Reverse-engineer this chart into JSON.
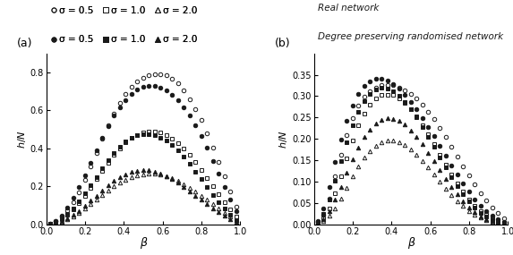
{
  "beta": [
    0.02,
    0.05,
    0.08,
    0.11,
    0.14,
    0.17,
    0.2,
    0.23,
    0.26,
    0.29,
    0.32,
    0.35,
    0.38,
    0.41,
    0.44,
    0.47,
    0.5,
    0.53,
    0.56,
    0.59,
    0.62,
    0.65,
    0.68,
    0.71,
    0.74,
    0.77,
    0.8,
    0.83,
    0.86,
    0.89,
    0.92,
    0.95,
    0.98
  ],
  "panel_a": {
    "real_s05": [
      0.005,
      0.018,
      0.04,
      0.075,
      0.118,
      0.17,
      0.235,
      0.305,
      0.378,
      0.452,
      0.522,
      0.585,
      0.638,
      0.685,
      0.722,
      0.752,
      0.772,
      0.785,
      0.792,
      0.792,
      0.785,
      0.768,
      0.742,
      0.705,
      0.66,
      0.608,
      0.548,
      0.48,
      0.405,
      0.33,
      0.252,
      0.175,
      0.095
    ],
    "real_s10": [
      0.003,
      0.012,
      0.028,
      0.05,
      0.078,
      0.112,
      0.15,
      0.192,
      0.238,
      0.282,
      0.325,
      0.365,
      0.4,
      0.43,
      0.455,
      0.472,
      0.482,
      0.488,
      0.488,
      0.482,
      0.47,
      0.452,
      0.428,
      0.398,
      0.365,
      0.328,
      0.288,
      0.245,
      0.2,
      0.158,
      0.118,
      0.08,
      0.042
    ],
    "real_s20": [
      0.002,
      0.007,
      0.015,
      0.027,
      0.042,
      0.06,
      0.082,
      0.105,
      0.13,
      0.155,
      0.178,
      0.2,
      0.22,
      0.236,
      0.248,
      0.258,
      0.264,
      0.267,
      0.266,
      0.262,
      0.254,
      0.242,
      0.228,
      0.212,
      0.193,
      0.173,
      0.151,
      0.129,
      0.106,
      0.083,
      0.062,
      0.042,
      0.022
    ],
    "rand_s05": [
      0.005,
      0.02,
      0.048,
      0.088,
      0.138,
      0.195,
      0.258,
      0.325,
      0.392,
      0.458,
      0.518,
      0.572,
      0.618,
      0.655,
      0.685,
      0.708,
      0.722,
      0.728,
      0.728,
      0.72,
      0.705,
      0.682,
      0.652,
      0.615,
      0.572,
      0.522,
      0.465,
      0.402,
      0.335,
      0.268,
      0.198,
      0.132,
      0.068
    ],
    "rand_s10": [
      0.003,
      0.012,
      0.03,
      0.055,
      0.086,
      0.122,
      0.162,
      0.205,
      0.25,
      0.295,
      0.338,
      0.375,
      0.408,
      0.435,
      0.455,
      0.468,
      0.475,
      0.476,
      0.47,
      0.458,
      0.44,
      0.416,
      0.388,
      0.356,
      0.319,
      0.279,
      0.238,
      0.196,
      0.155,
      0.118,
      0.083,
      0.052,
      0.024
    ],
    "rand_s20": [
      0.002,
      0.007,
      0.017,
      0.032,
      0.05,
      0.072,
      0.097,
      0.124,
      0.152,
      0.18,
      0.206,
      0.229,
      0.249,
      0.264,
      0.275,
      0.282,
      0.285,
      0.284,
      0.278,
      0.268,
      0.254,
      0.237,
      0.218,
      0.197,
      0.175,
      0.152,
      0.129,
      0.106,
      0.084,
      0.063,
      0.044,
      0.028,
      0.013
    ]
  },
  "panel_b": {
    "real_s05": [
      0.005,
      0.022,
      0.06,
      0.112,
      0.162,
      0.208,
      0.248,
      0.278,
      0.298,
      0.312,
      0.32,
      0.325,
      0.326,
      0.325,
      0.32,
      0.314,
      0.305,
      0.294,
      0.28,
      0.264,
      0.246,
      0.226,
      0.204,
      0.182,
      0.159,
      0.136,
      0.114,
      0.093,
      0.073,
      0.056,
      0.04,
      0.027,
      0.014
    ],
    "real_s10": [
      0.003,
      0.014,
      0.038,
      0.072,
      0.112,
      0.155,
      0.196,
      0.232,
      0.26,
      0.28,
      0.294,
      0.302,
      0.304,
      0.302,
      0.295,
      0.284,
      0.27,
      0.252,
      0.232,
      0.21,
      0.187,
      0.163,
      0.14,
      0.117,
      0.096,
      0.077,
      0.059,
      0.044,
      0.032,
      0.022,
      0.014,
      0.009,
      0.004
    ],
    "real_s20": [
      0.002,
      0.008,
      0.02,
      0.038,
      0.06,
      0.086,
      0.112,
      0.136,
      0.156,
      0.172,
      0.184,
      0.192,
      0.196,
      0.196,
      0.193,
      0.186,
      0.176,
      0.163,
      0.149,
      0.133,
      0.116,
      0.1,
      0.084,
      0.069,
      0.055,
      0.043,
      0.032,
      0.023,
      0.016,
      0.01,
      0.006,
      0.004,
      0.002
    ],
    "rand_s05": [
      0.008,
      0.038,
      0.088,
      0.145,
      0.198,
      0.242,
      0.278,
      0.305,
      0.324,
      0.335,
      0.34,
      0.34,
      0.336,
      0.328,
      0.317,
      0.303,
      0.287,
      0.269,
      0.249,
      0.228,
      0.206,
      0.183,
      0.16,
      0.138,
      0.116,
      0.095,
      0.076,
      0.059,
      0.044,
      0.031,
      0.021,
      0.013,
      0.006
    ],
    "rand_s10": [
      0.005,
      0.024,
      0.058,
      0.102,
      0.148,
      0.192,
      0.232,
      0.264,
      0.288,
      0.305,
      0.315,
      0.32,
      0.318,
      0.312,
      0.301,
      0.287,
      0.27,
      0.25,
      0.228,
      0.205,
      0.181,
      0.157,
      0.133,
      0.111,
      0.09,
      0.071,
      0.054,
      0.039,
      0.027,
      0.018,
      0.011,
      0.006,
      0.003
    ],
    "rand_s20": [
      0.003,
      0.013,
      0.032,
      0.058,
      0.088,
      0.12,
      0.152,
      0.18,
      0.204,
      0.222,
      0.235,
      0.244,
      0.248,
      0.247,
      0.242,
      0.233,
      0.22,
      0.205,
      0.188,
      0.168,
      0.148,
      0.127,
      0.107,
      0.088,
      0.07,
      0.054,
      0.04,
      0.029,
      0.019,
      0.012,
      0.007,
      0.004,
      0.002
    ]
  },
  "xlabel": "β",
  "panel_a_ylim": [
    0,
    0.9
  ],
  "panel_a_yticks": [
    0.0,
    0.2,
    0.4,
    0.6,
    0.8
  ],
  "panel_b_ylim": [
    0,
    0.4
  ],
  "panel_b_yticks": [
    0.0,
    0.05,
    0.1,
    0.15,
    0.2,
    0.25,
    0.3,
    0.35
  ],
  "xlim": [
    0,
    1.0
  ],
  "xticks": [
    0.0,
    0.2,
    0.4,
    0.6,
    0.8,
    1.0
  ],
  "marker_size": 3.2,
  "color": "#1a1a1a",
  "fig_background": "#ffffff",
  "legend_row1_labels": [
    "σ = 0.5",
    "σ = 1.0",
    "σ = 2.0"
  ],
  "legend_row2_labels": [
    "σ = 0.5",
    "σ = 1.0",
    "σ = 2.0"
  ],
  "text_real": "Real network",
  "text_rand": "Degree preserving randomised network"
}
